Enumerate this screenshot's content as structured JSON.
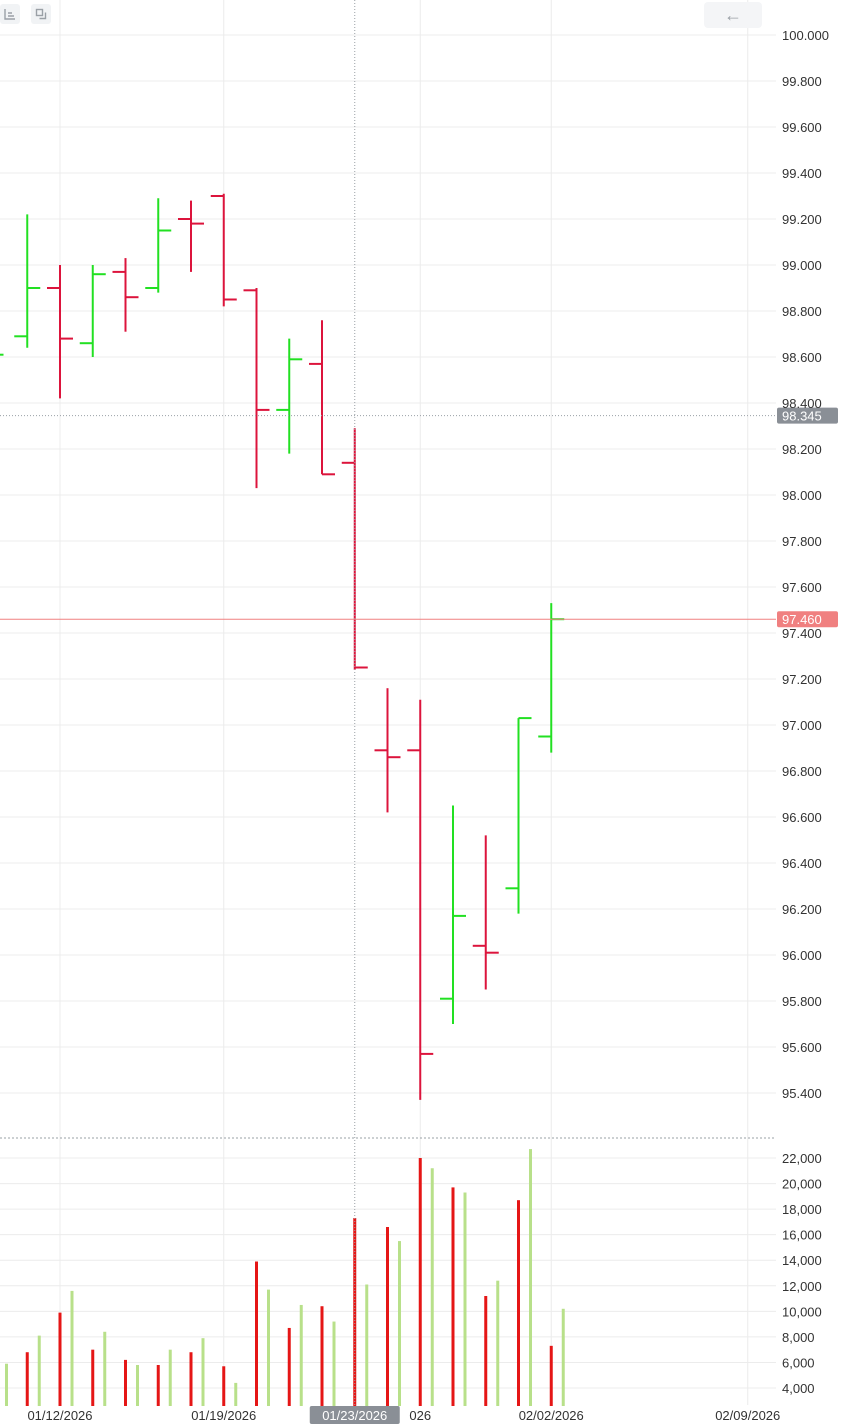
{
  "toolbar": {
    "left_icons": [
      "axis-settings-icon",
      "copy-icon"
    ],
    "back_icon_glyph": "←"
  },
  "chart_data": {
    "type": "ohlc",
    "dates": [
      "01/08/2026",
      "01/09/2026",
      "01/12/2026",
      "01/13/2026",
      "01/14/2026",
      "01/15/2026",
      "01/16/2026",
      "01/19/2026",
      "01/20/2026",
      "01/21/2026",
      "01/22/2026",
      "01/23/2026",
      "01/26/2026",
      "01/27/2026",
      "01/28/2026",
      "01/29/2026",
      "01/30/2026",
      "02/02/2026"
    ],
    "ohlc": [
      {
        "open": 98.69,
        "high": 99.22,
        "low": 98.64,
        "close": 98.9
      },
      {
        "open": 98.9,
        "high": 99.0,
        "low": 98.42,
        "close": 98.68
      },
      {
        "open": 98.66,
        "high": 99.0,
        "low": 98.6,
        "close": 98.96
      },
      {
        "open": 98.97,
        "high": 99.03,
        "low": 98.71,
        "close": 98.86
      },
      {
        "open": 98.9,
        "high": 99.29,
        "low": 98.88,
        "close": 99.15
      },
      {
        "open": 99.2,
        "high": 99.28,
        "low": 98.97,
        "close": 99.18
      },
      {
        "open": 99.3,
        "high": 99.31,
        "low": 98.82,
        "close": 98.85
      },
      {
        "open": 98.89,
        "high": 98.9,
        "low": 98.03,
        "close": 98.37
      },
      {
        "open": 98.37,
        "high": 98.68,
        "low": 98.18,
        "close": 98.59
      },
      {
        "open": 98.57,
        "high": 98.76,
        "low": 98.09,
        "close": 98.09
      },
      {
        "open": 98.14,
        "high": 98.29,
        "low": 97.24,
        "close": 97.25
      },
      {
        "open": 96.89,
        "high": 97.16,
        "low": 96.62,
        "close": 96.86
      },
      {
        "open": 96.89,
        "high": 97.11,
        "low": 95.37,
        "close": 95.57
      },
      {
        "open": 95.81,
        "high": 96.65,
        "low": 95.7,
        "close": 96.17
      },
      {
        "open": 96.04,
        "high": 96.52,
        "low": 95.85,
        "close": 96.01
      },
      {
        "open": 96.29,
        "high": 97.03,
        "low": 96.18,
        "close": 97.03
      },
      {
        "open": 96.95,
        "high": 97.53,
        "low": 96.88,
        "close": 97.46
      }
    ],
    "ohlc_first_index": 1,
    "partial_first_bar": {
      "close": 98.61
    },
    "volume": [
      {
        "red": null,
        "green": 5900
      },
      {
        "red": 6800,
        "green": 8100
      },
      {
        "red": 9900,
        "green": 11600
      },
      {
        "red": 7000,
        "green": 8400
      },
      {
        "red": 6200,
        "green": 5800
      },
      {
        "red": 5800,
        "green": 7000
      },
      {
        "red": 6800,
        "green": 7900
      },
      {
        "red": 5700,
        "green": 4400
      },
      {
        "red": 13900,
        "green": 11700
      },
      {
        "red": 8700,
        "green": 10500
      },
      {
        "red": 10400,
        "green": 9200
      },
      {
        "red": 17300,
        "green": 12100
      },
      {
        "red": 16600,
        "green": 15500
      },
      {
        "red": 22000,
        "green": 21200
      },
      {
        "red": 19700,
        "green": 19300
      },
      {
        "red": 11200,
        "green": 12400
      },
      {
        "red": 18700,
        "green": 22700
      },
      {
        "red": 7300,
        "green": 10200
      }
    ],
    "price_ticks": [
      "100.000",
      "99.800",
      "99.600",
      "99.400",
      "99.200",
      "99.000",
      "98.800",
      "98.600",
      "98.400",
      "98.200",
      "98.000",
      "97.800",
      "97.600",
      "97.400",
      "97.200",
      "97.000",
      "96.800",
      "96.600",
      "96.400",
      "96.200",
      "96.000",
      "95.800",
      "95.600",
      "95.400"
    ],
    "volume_ticks": [
      "22,000",
      "20,000",
      "18,000",
      "16,000",
      "14,000",
      "12,000",
      "10,000",
      "8,000",
      "6,000",
      "4,000"
    ],
    "x_ticks": [
      {
        "label": "01/12/2026",
        "index": 2
      },
      {
        "label": "01/19/2026",
        "index": 7
      },
      {
        "label": "026",
        "index": 13
      },
      {
        "label": "02/02/2026",
        "index": 17
      },
      {
        "label": "02/09/2026",
        "index": 23
      }
    ],
    "crosshair": {
      "date_label": "01/23/2026",
      "index": 11,
      "price_label": "98.345",
      "price": 98.345
    },
    "last_price": {
      "label": "97.460",
      "value": 97.46
    },
    "price_range": [
      95.2,
      100.05
    ],
    "volume_range": [
      3000,
      23000
    ],
    "colors": {
      "up": "#22e022",
      "down": "#dc143c",
      "vol_up": "#b8e08a",
      "vol_down": "#e51616",
      "last": "#f08080",
      "crosshair_tag": "#8a8f96",
      "grid": "#ececec"
    },
    "grid": true
  }
}
